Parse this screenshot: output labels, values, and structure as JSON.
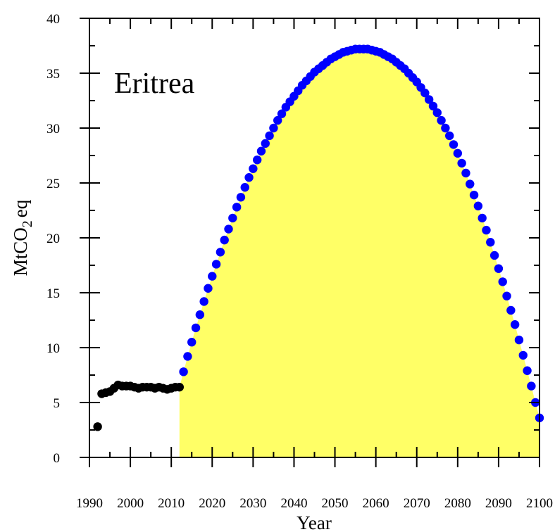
{
  "chart_data": {
    "type": "scatter",
    "title": "Eritrea",
    "xlabel": "Year",
    "ylabel_main": "MtCO",
    "ylabel_sub": "2",
    "ylabel_suffix": "eq",
    "xlim": [
      1990,
      2100
    ],
    "ylim": [
      0,
      40
    ],
    "x_ticks": [
      1990,
      2000,
      2010,
      2020,
      2030,
      2040,
      2050,
      2060,
      2070,
      2080,
      2090,
      2100
    ],
    "y_ticks": [
      0,
      5,
      10,
      15,
      20,
      25,
      30,
      35,
      40
    ],
    "grid": false,
    "fill_color": "#ffff66",
    "series": [
      {
        "color": "#000000",
        "x": [
          1992,
          1993,
          1994,
          1995,
          1996,
          1997,
          1998,
          1999,
          2000,
          2001,
          2002,
          2003,
          2004,
          2005,
          2006,
          2007,
          2008,
          2009,
          2010,
          2011,
          2012
        ],
        "y": [
          2.8,
          5.8,
          5.9,
          6.0,
          6.3,
          6.6,
          6.5,
          6.5,
          6.5,
          6.4,
          6.3,
          6.4,
          6.4,
          6.4,
          6.3,
          6.4,
          6.3,
          6.2,
          6.3,
          6.4,
          6.4
        ]
      },
      {
        "color": "#0000ff",
        "x": [
          2013,
          2014,
          2015,
          2016,
          2017,
          2018,
          2019,
          2020,
          2021,
          2022,
          2023,
          2024,
          2025,
          2026,
          2027,
          2028,
          2029,
          2030,
          2031,
          2032,
          2033,
          2034,
          2035,
          2036,
          2037,
          2038,
          2039,
          2040,
          2041,
          2042,
          2043,
          2044,
          2045,
          2046,
          2047,
          2048,
          2049,
          2050,
          2051,
          2052,
          2053,
          2054,
          2055,
          2056,
          2057,
          2058,
          2059,
          2060,
          2061,
          2062,
          2063,
          2064,
          2065,
          2066,
          2067,
          2068,
          2069,
          2070,
          2071,
          2072,
          2073,
          2074,
          2075,
          2076,
          2077,
          2078,
          2079,
          2080,
          2081,
          2082,
          2083,
          2084,
          2085,
          2086,
          2087,
          2088,
          2089,
          2090,
          2091,
          2092,
          2093,
          2094,
          2095,
          2096,
          2097,
          2098,
          2099,
          2100
        ],
        "y": [
          7.8,
          9.2,
          10.5,
          11.8,
          13.0,
          14.2,
          15.4,
          16.5,
          17.6,
          18.7,
          19.8,
          20.8,
          21.8,
          22.8,
          23.7,
          24.6,
          25.5,
          26.3,
          27.1,
          27.9,
          28.6,
          29.3,
          30.0,
          30.7,
          31.3,
          31.9,
          32.4,
          32.9,
          33.4,
          33.9,
          34.3,
          34.7,
          35.1,
          35.4,
          35.7,
          36.0,
          36.3,
          36.5,
          36.7,
          36.9,
          37.0,
          37.1,
          37.2,
          37.2,
          37.2,
          37.2,
          37.1,
          37.0,
          36.9,
          36.7,
          36.5,
          36.3,
          36.0,
          35.7,
          35.4,
          35.0,
          34.6,
          34.2,
          33.7,
          33.2,
          32.6,
          32.0,
          31.4,
          30.7,
          30.0,
          29.3,
          28.5,
          27.7,
          26.8,
          25.9,
          24.9,
          23.9,
          22.9,
          21.8,
          20.7,
          19.6,
          18.4,
          17.2,
          16.0,
          14.7,
          13.4,
          12.1,
          10.7,
          9.3,
          7.9,
          6.5,
          5.0,
          3.6
        ]
      }
    ]
  }
}
